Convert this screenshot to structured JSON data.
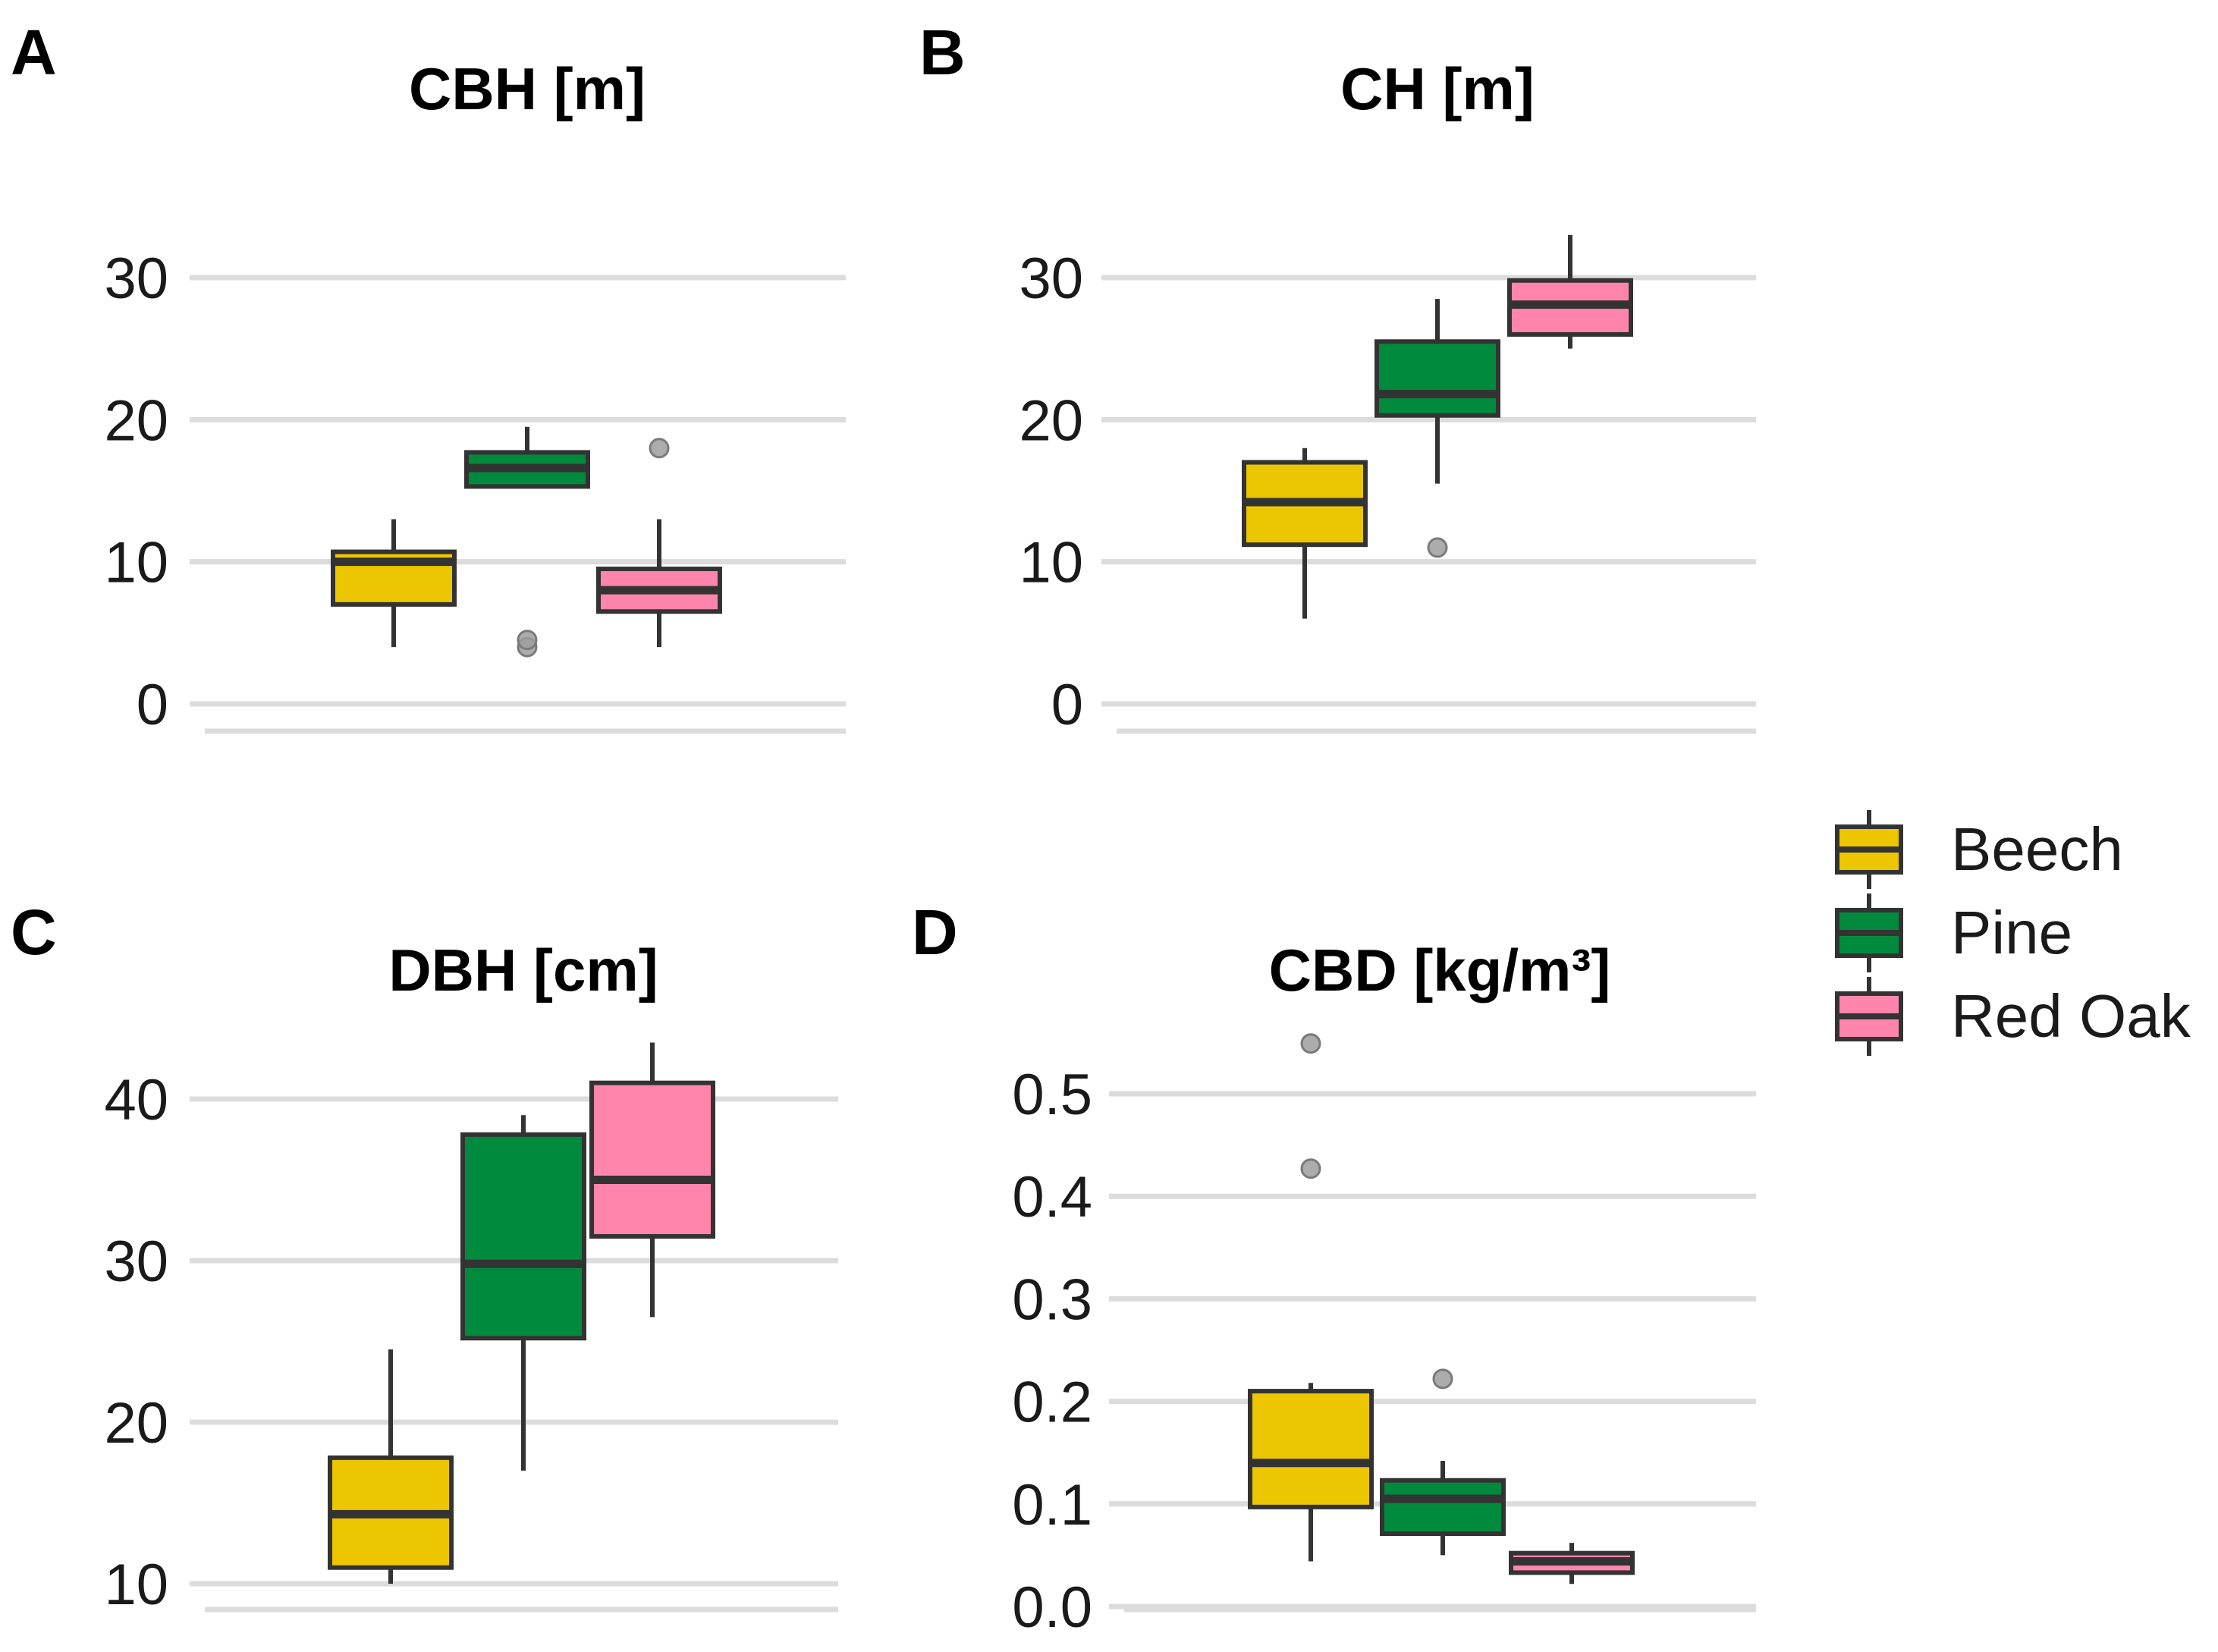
{
  "colors": {
    "Beech": "#ecc600",
    "Pine": "#008a3e",
    "Red Oak": "#ff85ad",
    "outline": "#333333",
    "outlier": "#9e9e9e",
    "grid": "#dcdcdc"
  },
  "legend": {
    "items": [
      {
        "label": "Beech"
      },
      {
        "label": "Pine"
      },
      {
        "label": "Red Oak"
      }
    ]
  },
  "chart_data": [
    {
      "panel": "A",
      "type": "boxplot",
      "title": "CBH [m]",
      "ylim": [
        0,
        32
      ],
      "yticks": [
        0,
        10,
        20,
        30
      ],
      "ytick_labels": [
        "0",
        "10",
        "20",
        "30"
      ],
      "categories": [
        "Beech",
        "Pine",
        "Red Oak"
      ],
      "boxes": [
        {
          "species": "Beech",
          "whisker_low": 4,
          "q1": 7,
          "median": 10,
          "q3": 10.7,
          "whisker_high": 13,
          "outliers": []
        },
        {
          "species": "Pine",
          "whisker_low": 15.2,
          "q1": 15.3,
          "median": 16.6,
          "q3": 17.7,
          "whisker_high": 19.5,
          "outliers": [
            4,
            4.5
          ]
        },
        {
          "species": "Red Oak",
          "whisker_low": 4,
          "q1": 6.5,
          "median": 8,
          "q3": 9.5,
          "whisker_high": 13,
          "outliers": [
            18
          ]
        }
      ]
    },
    {
      "panel": "B",
      "type": "boxplot",
      "title": "CH [m]",
      "ylim": [
        0,
        33
      ],
      "yticks": [
        0,
        10,
        20,
        30
      ],
      "ytick_labels": [
        "0",
        "10",
        "20",
        "30"
      ],
      "categories": [
        "Beech",
        "Pine",
        "Red Oak"
      ],
      "boxes": [
        {
          "species": "Beech",
          "whisker_low": 6,
          "q1": 11.2,
          "median": 14.2,
          "q3": 17,
          "whisker_high": 18,
          "outliers": []
        },
        {
          "species": "Pine",
          "whisker_low": 15.5,
          "q1": 20.3,
          "median": 21.8,
          "q3": 25.5,
          "whisker_high": 28.5,
          "outliers": [
            11
          ]
        },
        {
          "species": "Red Oak",
          "whisker_low": 25,
          "q1": 26,
          "median": 28.1,
          "q3": 29.8,
          "whisker_high": 33,
          "outliers": []
        }
      ]
    },
    {
      "panel": "C",
      "type": "boxplot",
      "title": "DBH [cm]",
      "ylim": [
        10,
        44
      ],
      "yticks": [
        10,
        20,
        30,
        40
      ],
      "ytick_labels": [
        "10",
        "20",
        "30",
        "40"
      ],
      "categories": [
        "Beech",
        "Pine",
        "Red Oak"
      ],
      "boxes": [
        {
          "species": "Beech",
          "whisker_low": 10,
          "q1": 11,
          "median": 14.3,
          "q3": 17.8,
          "whisker_high": 24.5,
          "outliers": []
        },
        {
          "species": "Pine",
          "whisker_low": 17,
          "q1": 25.2,
          "median": 29.8,
          "q3": 37.8,
          "whisker_high": 39,
          "outliers": []
        },
        {
          "species": "Red Oak",
          "whisker_low": 26.5,
          "q1": 31.5,
          "median": 35,
          "q3": 41,
          "whisker_high": 43.5,
          "outliers": []
        }
      ]
    },
    {
      "panel": "D",
      "type": "boxplot",
      "title": "CBD [kg/m³]",
      "ylim": [
        0,
        0.55
      ],
      "yticks": [
        0.0,
        0.1,
        0.2,
        0.3,
        0.4,
        0.5
      ],
      "ytick_labels": [
        "0.0",
        "0.1",
        "0.2",
        "0.3",
        "0.4",
        "0.5"
      ],
      "categories": [
        "Beech",
        "Pine",
        "Red Oak"
      ],
      "boxes": [
        {
          "species": "Beech",
          "whisker_low": 0.044,
          "q1": 0.097,
          "median": 0.14,
          "q3": 0.21,
          "whisker_high": 0.218,
          "outliers": [
            0.427,
            0.549
          ]
        },
        {
          "species": "Pine",
          "whisker_low": 0.05,
          "q1": 0.071,
          "median": 0.105,
          "q3": 0.123,
          "whisker_high": 0.142,
          "outliers": [
            0.222
          ]
        },
        {
          "species": "Red Oak",
          "whisker_low": 0.022,
          "q1": 0.033,
          "median": 0.044,
          "q3": 0.052,
          "whisker_high": 0.062,
          "outliers": []
        }
      ]
    }
  ]
}
